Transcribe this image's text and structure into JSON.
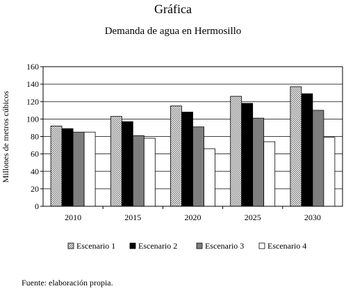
{
  "header": {
    "label": "Gráfica",
    "chart_title": "Demanda de agua en Hermosillo"
  },
  "source_note": "Fuente: elaboración propia.",
  "chart_data": {
    "type": "bar",
    "title": "Demanda de agua en Hermosillo",
    "xlabel": "",
    "ylabel": "Millones de metros cúbicos",
    "categories": [
      "2010",
      "2015",
      "2020",
      "2025",
      "2030"
    ],
    "ylim": [
      0,
      160
    ],
    "yticks": [
      0,
      20,
      40,
      60,
      80,
      100,
      120,
      140,
      160
    ],
    "grid": "horizontal",
    "legend_position": "bottom",
    "series": [
      {
        "name": "Escenario 1",
        "fill": "checkered-gray",
        "values": [
          92,
          103,
          115,
          126,
          137
        ]
      },
      {
        "name": "Escenario 2",
        "fill": "black",
        "values": [
          89,
          97,
          108,
          118,
          129
        ]
      },
      {
        "name": "Escenario 3",
        "fill": "dotted-gray",
        "values": [
          85,
          81,
          91,
          101,
          110
        ]
      },
      {
        "name": "Escenario 4",
        "fill": "white",
        "values": [
          85,
          78,
          66,
          74,
          79
        ]
      }
    ]
  }
}
